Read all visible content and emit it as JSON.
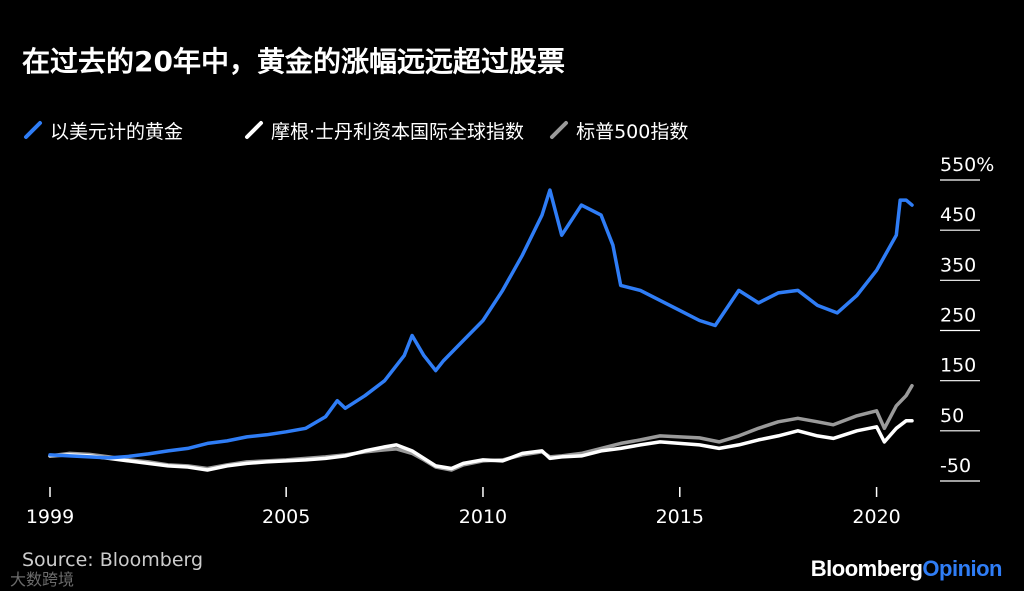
{
  "title": "在过去的20年中，黄金的涨幅远远超过股票",
  "source": "Source: Bloomberg",
  "watermark": "大数跨境",
  "brand": {
    "part1": "Bloomberg",
    "part2": "Opinion",
    "part2_color": "#2f7df6"
  },
  "chart_data": {
    "type": "line",
    "title": "在过去的20年中，黄金的涨幅远远超过股票",
    "xlabel": "",
    "ylabel": "",
    "xlim": [
      1999.0,
      2020.9
    ],
    "ylim": [
      -50,
      550
    ],
    "x_ticks": [
      1999,
      2005,
      2010,
      2015,
      2020
    ],
    "x_tick_labels": [
      "1999",
      "2005",
      "2010",
      "2015",
      "2020"
    ],
    "y_ticks": [
      550,
      450,
      350,
      250,
      150,
      50,
      -50
    ],
    "y_tick_labels": [
      "550%",
      "450",
      "350",
      "250",
      "150",
      "50",
      "-50"
    ],
    "y_axis_side": "right",
    "grid": false,
    "legend_position": "top-left",
    "series": [
      {
        "name": "以美元计的黄金",
        "color": "#2f7df6",
        "x": [
          1999.0,
          1999.5,
          2000.0,
          2000.5,
          2001.0,
          2001.5,
          2002.0,
          2002.5,
          2003.0,
          2003.5,
          2004.0,
          2004.5,
          2005.0,
          2005.5,
          2006.0,
          2006.3,
          2006.5,
          2007.0,
          2007.5,
          2008.0,
          2008.2,
          2008.5,
          2008.8,
          2009.0,
          2009.5,
          2010.0,
          2010.5,
          2011.0,
          2011.5,
          2011.7,
          2012.0,
          2012.5,
          2013.0,
          2013.3,
          2013.5,
          2014.0,
          2014.5,
          2015.0,
          2015.5,
          2015.9,
          2016.5,
          2017.0,
          2017.5,
          2018.0,
          2018.5,
          2019.0,
          2019.5,
          2020.0,
          2020.5,
          2020.6,
          2020.75,
          2020.9
        ],
        "values": [
          2,
          0,
          -2,
          -4,
          -1,
          4,
          10,
          15,
          25,
          30,
          38,
          42,
          48,
          55,
          78,
          110,
          95,
          120,
          150,
          200,
          240,
          200,
          170,
          190,
          230,
          270,
          330,
          400,
          480,
          530,
          440,
          500,
          480,
          420,
          340,
          330,
          310,
          290,
          270,
          260,
          330,
          305,
          325,
          330,
          300,
          285,
          320,
          370,
          440,
          510,
          510,
          500
        ]
      },
      {
        "name": "摩根·士丹利资本国际全球指数",
        "color": "#ffffff",
        "x": [
          1999.0,
          1999.5,
          2000.0,
          2000.5,
          2001.0,
          2001.5,
          2002.0,
          2002.5,
          2003.0,
          2003.5,
          2004.0,
          2004.5,
          2005.0,
          2005.5,
          2006.0,
          2006.5,
          2007.0,
          2007.5,
          2007.8,
          2008.2,
          2008.5,
          2008.8,
          2009.2,
          2009.5,
          2010.0,
          2010.5,
          2011.0,
          2011.5,
          2011.7,
          2012.0,
          2012.5,
          2013.0,
          2013.5,
          2014.0,
          2014.5,
          2015.0,
          2015.5,
          2016.0,
          2016.5,
          2017.0,
          2017.5,
          2018.0,
          2018.5,
          2018.9,
          2019.5,
          2020.0,
          2020.2,
          2020.5,
          2020.75,
          2020.9
        ],
        "values": [
          0,
          2,
          0,
          -5,
          -10,
          -15,
          -20,
          -22,
          -28,
          -20,
          -15,
          -12,
          -10,
          -8,
          -5,
          0,
          10,
          18,
          22,
          10,
          -5,
          -20,
          -25,
          -15,
          -8,
          -10,
          5,
          10,
          -5,
          -2,
          0,
          10,
          15,
          22,
          28,
          25,
          22,
          15,
          22,
          32,
          40,
          50,
          40,
          35,
          50,
          58,
          28,
          55,
          70,
          70
        ]
      },
      {
        "name": "标普500指数",
        "color": "#9a9a9a",
        "x": [
          1999.0,
          1999.5,
          2000.0,
          2000.5,
          2001.0,
          2001.5,
          2002.0,
          2002.5,
          2003.0,
          2003.5,
          2004.0,
          2004.5,
          2005.0,
          2005.5,
          2006.0,
          2006.5,
          2007.0,
          2007.5,
          2007.8,
          2008.2,
          2008.5,
          2008.8,
          2009.2,
          2009.5,
          2010.0,
          2010.5,
          2011.0,
          2011.5,
          2011.7,
          2012.0,
          2012.5,
          2013.0,
          2013.5,
          2014.0,
          2014.5,
          2015.0,
          2015.5,
          2016.0,
          2016.5,
          2017.0,
          2017.5,
          2018.0,
          2018.5,
          2018.9,
          2019.5,
          2020.0,
          2020.2,
          2020.5,
          2020.75,
          2020.9
        ],
        "values": [
          0,
          5,
          3,
          -2,
          -8,
          -12,
          -18,
          -20,
          -25,
          -18,
          -12,
          -10,
          -8,
          -5,
          -2,
          2,
          8,
          12,
          14,
          5,
          -8,
          -22,
          -28,
          -18,
          -10,
          -8,
          2,
          8,
          -2,
          0,
          5,
          15,
          25,
          32,
          40,
          38,
          36,
          28,
          40,
          55,
          68,
          75,
          68,
          62,
          80,
          90,
          55,
          100,
          120,
          140
        ]
      }
    ]
  }
}
